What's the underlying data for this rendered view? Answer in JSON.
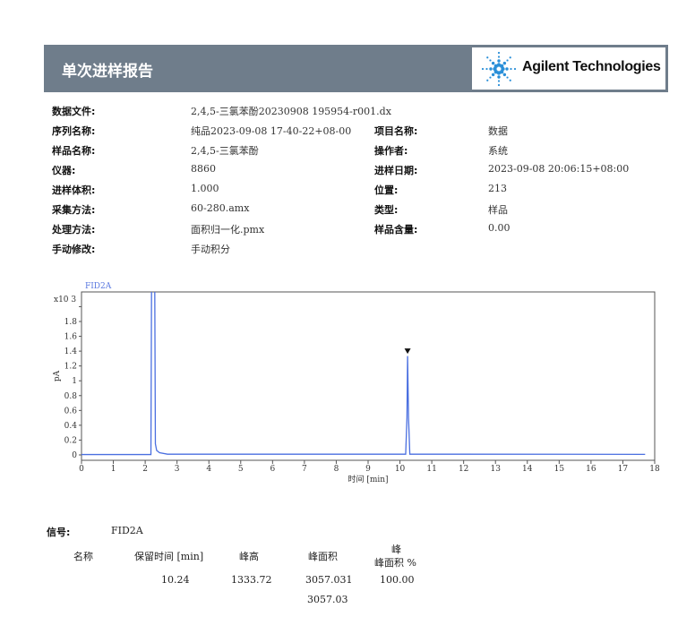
{
  "header": {
    "title": "单次进样报告",
    "logo_text": "Agilent Technologies"
  },
  "info": [
    {
      "label": "数据文件:",
      "value": "2,4,5-三氯苯酚20230908 195954-r001.dx"
    },
    {
      "label": "序列名称:",
      "value": "纯品2023-09-08 17-40-22+08-00",
      "label2": "项目名称:",
      "value2": "数据"
    },
    {
      "label": "样品名称:",
      "value": "2,4,5-三氯苯酚",
      "label2": "操作者:",
      "value2": "系统"
    },
    {
      "label": "仪器:",
      "value": "8860",
      "label2": "进样日期:",
      "value2": "2023-09-08 20:06:15+08:00"
    },
    {
      "label": "进样体积:",
      "value": "1.000",
      "label2": "位置:",
      "value2": "213"
    },
    {
      "label": "采集方法:",
      "value": "60-280.amx",
      "label2": "类型:",
      "value2": "样品"
    },
    {
      "label": "处理方法:",
      "value": "面积归一化.pmx",
      "label2": "样品含量:",
      "value2": "0.00"
    },
    {
      "label": "手动修改:",
      "value": "手动积分"
    }
  ],
  "chart_data": {
    "type": "line",
    "title": "FID2A",
    "xlabel": "时间 [min]",
    "ylabel": "pA",
    "y_multiplier": "x10 3",
    "xlim": [
      0,
      18
    ],
    "ylim": [
      0,
      2.2
    ],
    "xticks": [
      0,
      1,
      2,
      3,
      4,
      5,
      6,
      7,
      8,
      9,
      10,
      11,
      12,
      13,
      14,
      15,
      16,
      17,
      18
    ],
    "yticks": [
      0,
      0.2,
      0.4,
      0.6,
      0.8,
      1,
      1.2,
      1.4,
      1.6,
      1.8,
      2
    ],
    "ytick_labels": [
      "0",
      "0.2",
      "0.4",
      "0.6",
      "0.8",
      "1",
      "1.2",
      "1.4",
      "1.6",
      "1.8",
      ""
    ],
    "grid": false,
    "series": [
      {
        "color": "#4a6fe0",
        "x": [
          0,
          2.18,
          2.2,
          2.22,
          2.3,
          2.32,
          2.36,
          2.45,
          2.7,
          10.18,
          10.22,
          10.24,
          10.27,
          10.31,
          17.7
        ],
        "y": [
          0.005,
          0.005,
          2.3,
          2.3,
          2.3,
          0.15,
          0.06,
          0.03,
          0.01,
          0.01,
          0.5,
          1.33372,
          0.5,
          0.01,
          0.008
        ]
      }
    ],
    "annotations": [
      {
        "type": "peak-marker",
        "x": 10.24,
        "y": 1.4
      }
    ]
  },
  "results": {
    "signal_label": "信号:",
    "signal_value": "FID2A",
    "headers": [
      "名称",
      "保留时间 [min]",
      "峰高",
      "峰面积",
      "峰",
      "峰面积 %"
    ],
    "rows": [
      {
        "name": "",
        "rt": "10.24",
        "height": "1333.72",
        "area": "3057.031",
        "area_pct": "100.00"
      }
    ],
    "total_area": "3057.03"
  }
}
